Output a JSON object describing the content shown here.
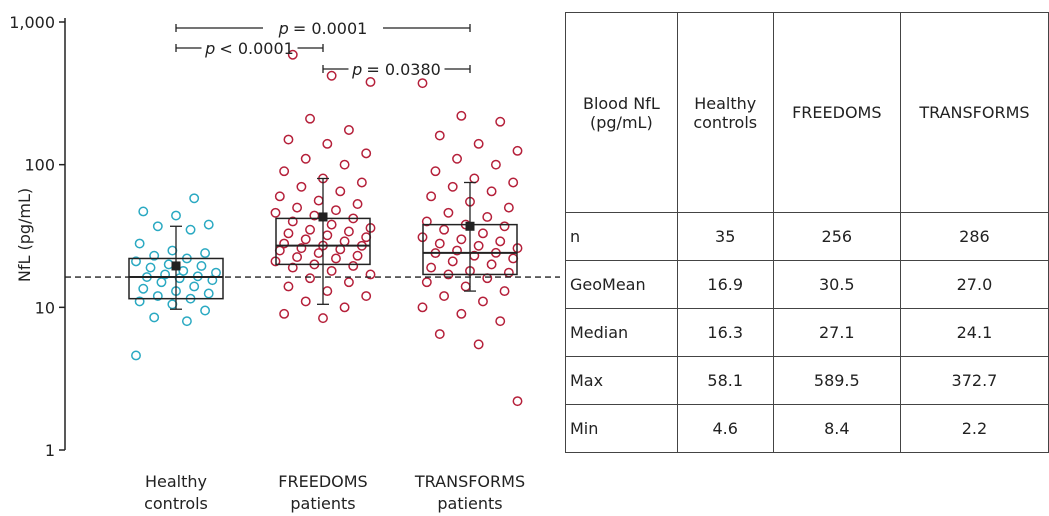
{
  "chart_data": {
    "type": "box",
    "y_label": "NfL (pg/mL)",
    "categories": [
      [
        "Healthy",
        "controls"
      ],
      [
        "FREEDOMS",
        "patients"
      ],
      [
        "TRANSFORMS",
        "patients"
      ]
    ],
    "colors": [
      "#2aa9c2",
      "#b5203a",
      "#b5203a"
    ],
    "log_scale": true,
    "ylim": [
      1,
      1000
    ],
    "yticks": [
      {
        "value": 1000,
        "label": "1,000"
      },
      100,
      10,
      1
    ],
    "reference_line": 16.3,
    "boxes": [
      {
        "whisker_low": 9.7,
        "q1": 11.5,
        "median": 16.3,
        "q3": 22,
        "whisker_high": 37,
        "mean": 19.5
      },
      {
        "whisker_low": 10.5,
        "q1": 20,
        "median": 27.1,
        "q3": 42,
        "whisker_high": 80,
        "mean": 43
      },
      {
        "whisker_low": 13,
        "q1": 17,
        "median": 24.1,
        "q3": 38,
        "whisker_high": 75,
        "mean": 37
      }
    ],
    "points": [
      [
        4.6,
        8,
        8.5,
        9.5,
        10.5,
        11,
        11.5,
        12,
        12.5,
        13,
        13.5,
        14,
        15,
        15.5,
        16,
        16.3,
        16.5,
        17,
        17.5,
        18,
        19,
        19.5,
        20,
        21,
        22,
        23,
        24,
        25,
        28,
        35,
        37,
        38,
        44,
        47,
        58.1
      ],
      [
        8.4,
        9,
        10,
        11,
        12,
        13,
        14,
        15,
        16,
        17,
        18,
        19,
        19.5,
        20,
        21,
        22,
        22.5,
        23,
        24,
        25,
        25.5,
        26,
        27,
        27.1,
        28,
        29,
        30,
        31,
        32,
        33,
        34,
        35,
        36,
        38,
        40,
        42,
        44,
        46,
        48,
        50,
        53,
        56,
        60,
        65,
        70,
        75,
        80,
        90,
        100,
        110,
        120,
        140,
        150,
        175,
        210,
        380,
        420,
        589.5
      ],
      [
        2.2,
        5.5,
        6.5,
        8,
        9,
        10,
        11,
        12,
        13,
        14,
        15,
        16,
        17,
        17.5,
        18,
        19,
        20,
        21,
        22,
        23,
        24,
        24.1,
        25,
        26,
        27,
        28,
        29,
        30,
        31,
        33,
        35,
        37,
        38,
        40,
        43,
        46,
        50,
        55,
        60,
        65,
        70,
        75,
        80,
        90,
        100,
        110,
        125,
        140,
        160,
        200,
        220,
        372.7
      ]
    ],
    "comparisons": [
      {
        "symbol": "p",
        "text": "= 0.0001"
      },
      {
        "symbol": "p",
        "text": "< 0.0001"
      },
      {
        "symbol": "p",
        "text": "= 0.0380"
      }
    ]
  },
  "table": {
    "header": [
      "Blood NfL (pg/mL)",
      "Healthy controls",
      "FREEDOMS",
      "TRANSFORMS"
    ],
    "rows": [
      [
        "n",
        "35",
        "256",
        "286"
      ],
      [
        "GeoMean",
        "16.9",
        "30.5",
        "27.0"
      ],
      [
        "Median",
        "16.3",
        "27.1",
        "24.1"
      ],
      [
        "Max",
        "58.1",
        "589.5",
        "372.7"
      ],
      [
        "Min",
        "4.6",
        "8.4",
        "2.2"
      ]
    ]
  }
}
